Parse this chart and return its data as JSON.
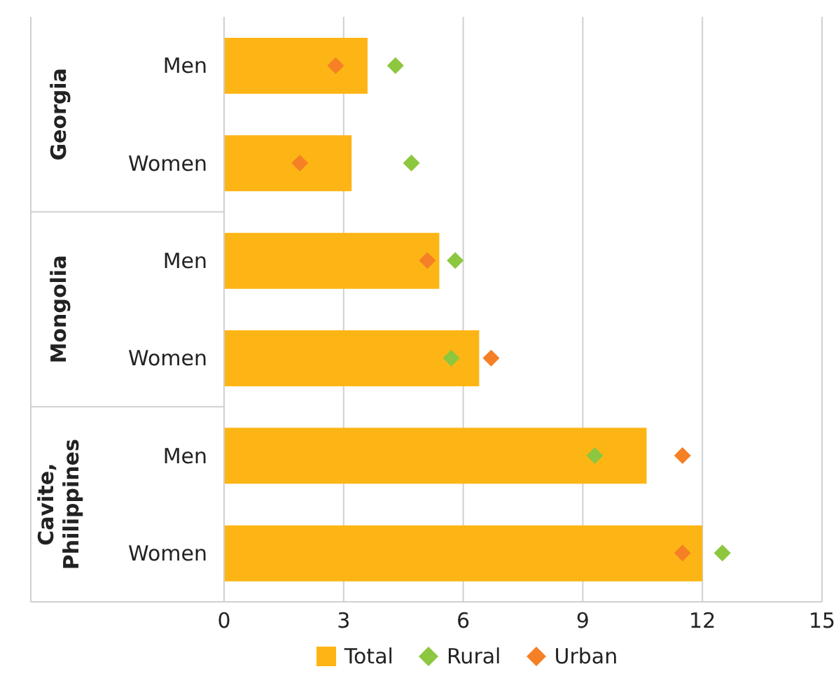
{
  "chart_data": {
    "type": "bar",
    "orientation": "horizontal",
    "categories": [
      "Men",
      "Women",
      "Men",
      "Women",
      "Men",
      "Women"
    ],
    "series": [
      {
        "name": "Total",
        "color": "#fdb515",
        "values": [
          3.6,
          3.2,
          5.4,
          6.4,
          10.6,
          12.0
        ]
      },
      {
        "name": "Rural",
        "type": "scatter",
        "color": "#8dc63f",
        "values": [
          4.3,
          4.7,
          5.8,
          5.7,
          9.3,
          12.5
        ]
      },
      {
        "name": "Urban",
        "type": "scatter",
        "color": "#f58025",
        "values": [
          2.8,
          1.9,
          5.1,
          6.7,
          11.5,
          11.5
        ]
      }
    ],
    "annotations": [
      "Georgia",
      "Mongolia",
      "Cavite,\nPhilippines"
    ],
    "xlim": [
      0,
      15
    ],
    "xticks": [
      0,
      3,
      6,
      9,
      12,
      15
    ],
    "grid": "x",
    "legend": "bottom",
    "marker": "diamond"
  }
}
